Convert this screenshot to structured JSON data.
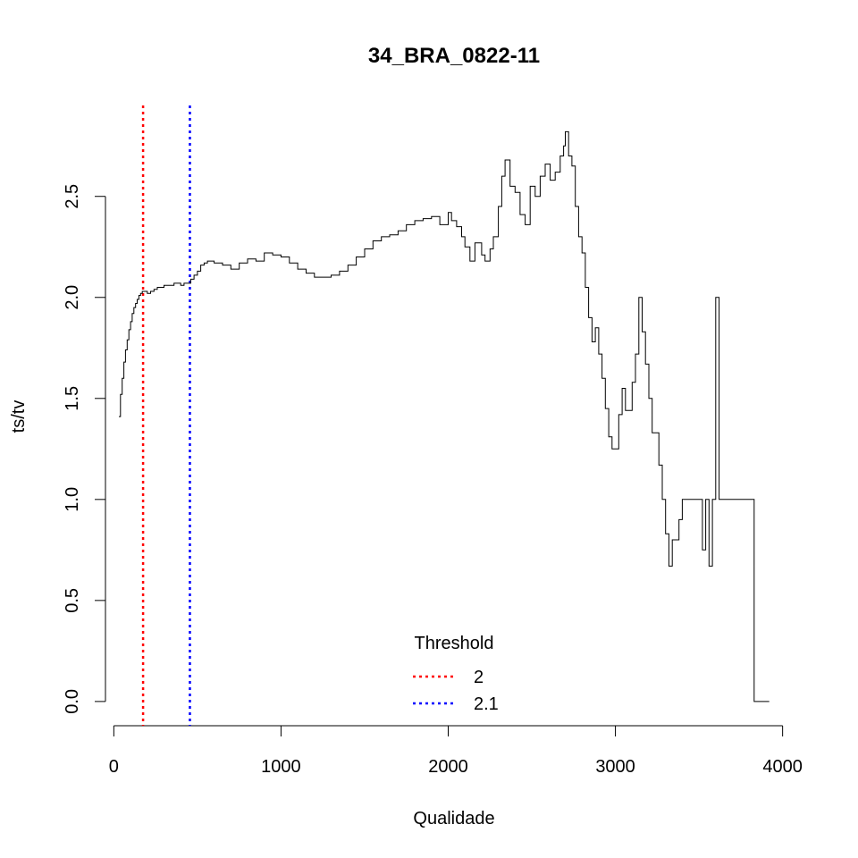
{
  "chart_data": {
    "type": "line",
    "title": "34_BRA_0822-11",
    "xlabel": "Qualidade",
    "ylabel": "ts/tv",
    "xlim": [
      -50,
      4050
    ],
    "ylim": [
      -0.12,
      2.95
    ],
    "xticks": [
      0,
      1000,
      2000,
      3000,
      4000
    ],
    "yticks": [
      0.0,
      0.5,
      1.0,
      1.5,
      2.0,
      2.5
    ],
    "ytick_labels": [
      "0.0",
      "0.5",
      "1.0",
      "1.5",
      "2.0",
      "2.5"
    ],
    "grid": false,
    "line_color": "#000000",
    "series": [
      {
        "x": [
          30,
          40,
          50,
          60,
          70,
          80,
          90,
          100,
          110,
          120,
          130,
          140,
          150,
          160,
          170,
          180,
          200,
          220,
          240,
          260,
          280,
          300,
          320,
          340,
          360,
          380,
          400,
          420,
          440,
          460,
          480,
          500,
          520,
          540,
          560,
          600,
          650,
          700,
          750,
          800,
          850,
          900,
          950,
          1000,
          1050,
          1100,
          1150,
          1200,
          1250,
          1300,
          1350,
          1400,
          1450,
          1500,
          1550,
          1600,
          1650,
          1700,
          1750,
          1800,
          1850,
          1900,
          1950,
          2000,
          2020,
          2050,
          2080,
          2100,
          2130,
          2160,
          2200,
          2220,
          2250,
          2270,
          2300,
          2320,
          2340,
          2370,
          2400,
          2430,
          2460,
          2490,
          2520,
          2550,
          2580,
          2610,
          2640,
          2670,
          2690,
          2700,
          2720,
          2740,
          2760,
          2780,
          2800,
          2820,
          2840,
          2860,
          2880,
          2900,
          2920,
          2940,
          2960,
          2980,
          3000,
          3020,
          3040,
          3060,
          3080,
          3100,
          3120,
          3140,
          3160,
          3180,
          3200,
          3220,
          3240,
          3260,
          3280,
          3300,
          3320,
          3340,
          3360,
          3380,
          3400,
          3430,
          3460,
          3490,
          3520,
          3540,
          3560,
          3580,
          3600,
          3620,
          3650,
          3700,
          3750,
          3800,
          3810,
          3830,
          3860,
          3900,
          3920
        ],
        "y": [
          1.41,
          1.52,
          1.6,
          1.68,
          1.74,
          1.79,
          1.84,
          1.88,
          1.92,
          1.95,
          1.97,
          1.99,
          2.01,
          2.02,
          2.03,
          2.03,
          2.02,
          2.03,
          2.04,
          2.05,
          2.05,
          2.06,
          2.06,
          2.06,
          2.07,
          2.07,
          2.06,
          2.07,
          2.07,
          2.09,
          2.11,
          2.13,
          2.16,
          2.17,
          2.18,
          2.17,
          2.16,
          2.14,
          2.17,
          2.19,
          2.18,
          2.22,
          2.21,
          2.2,
          2.17,
          2.14,
          2.12,
          2.1,
          2.1,
          2.11,
          2.13,
          2.16,
          2.2,
          2.24,
          2.28,
          2.3,
          2.31,
          2.33,
          2.36,
          2.38,
          2.39,
          2.4,
          2.36,
          2.42,
          2.38,
          2.35,
          2.3,
          2.25,
          2.18,
          2.27,
          2.21,
          2.18,
          2.24,
          2.3,
          2.45,
          2.6,
          2.68,
          2.55,
          2.52,
          2.41,
          2.36,
          2.55,
          2.5,
          2.6,
          2.66,
          2.58,
          2.62,
          2.7,
          2.75,
          2.82,
          2.7,
          2.65,
          2.45,
          2.3,
          2.22,
          2.05,
          1.9,
          1.78,
          1.85,
          1.72,
          1.6,
          1.45,
          1.31,
          1.25,
          1.25,
          1.42,
          1.55,
          1.44,
          1.44,
          1.58,
          1.72,
          2.0,
          1.83,
          1.67,
          1.5,
          1.33,
          1.33,
          1.17,
          1.0,
          0.83,
          0.67,
          0.8,
          0.8,
          0.9,
          1.0,
          1.0,
          1.0,
          1.0,
          0.75,
          1.0,
          0.67,
          1.0,
          2.0,
          1.0,
          1.0,
          1.0,
          1.0,
          1.0,
          1.0,
          0.0,
          0.0,
          0.0,
          0.0
        ]
      }
    ],
    "vlines": [
      {
        "x": 175,
        "color": "#ff0000",
        "dash": "dotted"
      },
      {
        "x": 455,
        "color": "#0000ff",
        "dash": "dotted"
      }
    ],
    "legend": {
      "title": "Threshold",
      "position": "bottom-center",
      "entries": [
        {
          "label": "2",
          "color": "#ff0000"
        },
        {
          "label": "2.1",
          "color": "#0000ff"
        }
      ]
    }
  }
}
